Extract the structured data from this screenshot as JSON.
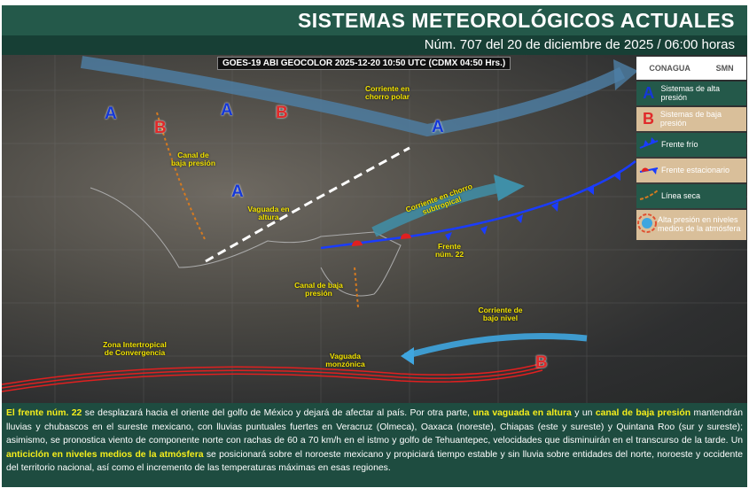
{
  "header": {
    "title": "SISTEMAS METEOROLÓGICOS ACTUALES",
    "subtitle": "Núm. 707 del 20 de diciembre de 2025 / 06:00 horas"
  },
  "map": {
    "satellite_caption": "GOES-19 ABI GEOCOLOR 2025-12-20 10:50 UTC (CDMX  04:50 Hrs.)",
    "high_marker": "A",
    "low_marker": "B",
    "labels": {
      "polar_jet": "Corriente en chorro polar",
      "low_channel_nw": "Canal de baja presión",
      "upper_trough": "Vaguada en altura",
      "subtropical_jet": "Corriente en chorro subtropical",
      "front": "Frente núm. 22",
      "low_channel_s": "Canal de baja presión",
      "low_level_jet": "Corriente de bajo nivel",
      "itcz": "Zona Intertropical de Convergencia",
      "monsoon_trough": "Vaguada monzónica"
    }
  },
  "legend": {
    "logos": [
      "CONAGUA",
      "SMN"
    ],
    "items": [
      {
        "icon": "A",
        "label": "Sistemas de alta presión",
        "color": "#1538d8"
      },
      {
        "icon": "B",
        "label": "Sistemas de baja presión",
        "color": "#e02a2a"
      },
      {
        "icon": "cold-front",
        "label": "Frente frío"
      },
      {
        "icon": "stationary-front",
        "label": "Frente estacionario"
      },
      {
        "icon": "dry-line",
        "label": "Línea seca"
      },
      {
        "icon": "mid-level-high",
        "label": "Alta presión en niveles medios de la atmósfera"
      }
    ]
  },
  "bulletin": {
    "p1": "El frente núm. 22",
    "p2": " se desplazará hacia el oriente del golfo de México y dejará de afectar al país. Por otra parte, ",
    "p3": "una vaguada en altura",
    "p4": " y un ",
    "p5": "canal de baja presión",
    "p6": " mantendrán lluvias y chubascos en el sureste mexicano, con lluvias puntuales fuertes en Veracruz (Olmeca), Oaxaca (noreste), Chiapas (este y sureste) y Quintana Roo (sur y sureste); asimismo, se pronostica viento de componente norte con rachas de 60 a 70 km/h en el istmo y golfo de Tehuantepec, velocidades que disminuirán en el transcurso de la tarde. Un ",
    "p7": "anticiclón en niveles medios de la atmósfera",
    "p8": " se posicionará sobre el noroeste mexicano y propiciará tiempo estable y sin lluvia sobre entidades del norte, noroeste y occidente del territorio nacional, así como el incremento de las temperaturas máximas en esas regiones."
  }
}
